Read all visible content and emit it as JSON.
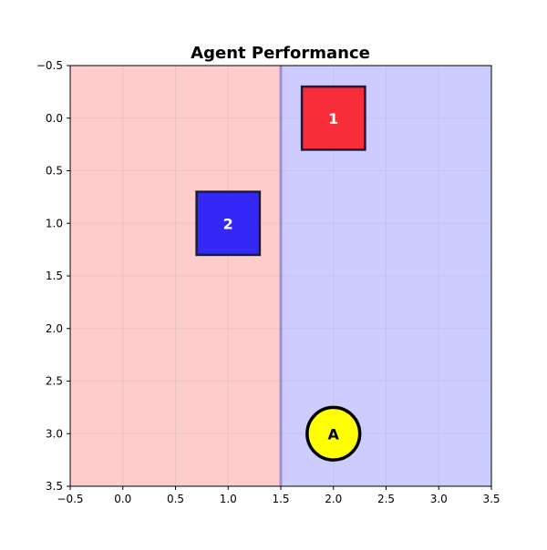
{
  "title": "Agent Performance",
  "axes": {
    "xlim": [
      -0.5,
      3.5
    ],
    "ylim": [
      -0.5,
      3.5
    ],
    "y_inverted": true,
    "xticks": [
      -0.5,
      0.0,
      0.5,
      1.0,
      1.5,
      2.0,
      2.5,
      3.0,
      3.5
    ],
    "yticks": [
      -0.5,
      0.0,
      0.5,
      1.0,
      1.5,
      2.0,
      2.5,
      3.0,
      3.5
    ],
    "xtick_labels": [
      "−0.5",
      "0.0",
      "0.5",
      "1.0",
      "1.5",
      "2.0",
      "2.5",
      "3.0",
      "3.5"
    ],
    "ytick_labels": [
      "−0.5",
      "0.0",
      "0.5",
      "1.0",
      "1.5",
      "2.0",
      "2.5",
      "3.0",
      "3.5"
    ],
    "grid": true
  },
  "regions": [
    {
      "name": "left-region",
      "x_from": -0.5,
      "x_to": 1.5,
      "color": "#ffcccc"
    },
    {
      "name": "right-region",
      "x_from": 1.5,
      "x_to": 3.5,
      "color": "#ccccff"
    }
  ],
  "divider": {
    "x": 1.5,
    "color": "#9f8fd6"
  },
  "boxes": [
    {
      "label": "1",
      "x": 2.0,
      "y": 0.0,
      "half_size": 0.3,
      "fill": "#f72d3a",
      "edge": "#1a1a3a"
    },
    {
      "label": "2",
      "x": 1.0,
      "y": 1.0,
      "half_size": 0.3,
      "fill": "#3328f5",
      "edge": "#1a1a3a"
    }
  ],
  "agent": {
    "label": "A",
    "x": 2.0,
    "y": 3.0,
    "radius": 0.25,
    "fill": "#ffff00",
    "edge": "#000000"
  }
}
